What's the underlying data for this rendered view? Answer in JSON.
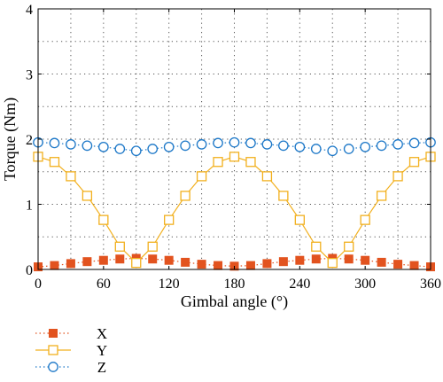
{
  "chart_data": {
    "type": "line",
    "title": "",
    "xlabel": "Gimbal angle (°)",
    "ylabel": "Torque (Nm)",
    "xlim": [
      0,
      360
    ],
    "ylim": [
      0,
      4
    ],
    "xticks": [
      0,
      60,
      120,
      180,
      240,
      300,
      360
    ],
    "yticks": [
      0,
      1,
      2,
      3,
      4
    ],
    "grid": true,
    "grid_style": "dotted",
    "legend_position": "below-left",
    "x": [
      0,
      15,
      30,
      45,
      60,
      75,
      90,
      105,
      120,
      135,
      150,
      165,
      180,
      195,
      210,
      225,
      240,
      255,
      270,
      285,
      300,
      315,
      330,
      345,
      360
    ],
    "series": [
      {
        "name": "X",
        "color": "#e2531f",
        "marker": "filled-square",
        "line_style": "dotted",
        "values": [
          0.04,
          0.06,
          0.09,
          0.12,
          0.14,
          0.16,
          0.17,
          0.16,
          0.14,
          0.11,
          0.08,
          0.06,
          0.05,
          0.06,
          0.09,
          0.12,
          0.14,
          0.16,
          0.17,
          0.16,
          0.14,
          0.11,
          0.08,
          0.06,
          0.04
        ]
      },
      {
        "name": "Y",
        "color": "#f2b01e",
        "marker": "open-square",
        "line_style": "solid",
        "values": [
          1.73,
          1.65,
          1.43,
          1.13,
          0.76,
          0.35,
          0.1,
          0.35,
          0.76,
          1.13,
          1.43,
          1.65,
          1.73,
          1.65,
          1.43,
          1.13,
          0.76,
          0.35,
          0.1,
          0.35,
          0.76,
          1.13,
          1.43,
          1.65,
          1.73
        ]
      },
      {
        "name": "Z",
        "color": "#1d78c8",
        "marker": "open-circle",
        "line_style": "dotted",
        "values": [
          1.95,
          1.94,
          1.92,
          1.9,
          1.88,
          1.85,
          1.82,
          1.85,
          1.88,
          1.9,
          1.92,
          1.94,
          1.95,
          1.94,
          1.92,
          1.9,
          1.88,
          1.85,
          1.82,
          1.85,
          1.88,
          1.9,
          1.92,
          1.94,
          1.95
        ]
      }
    ]
  }
}
